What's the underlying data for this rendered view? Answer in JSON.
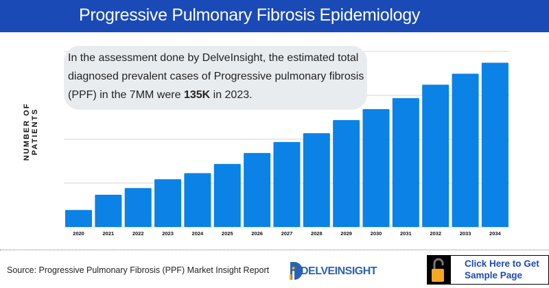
{
  "header": {
    "title": "Progressive Pulmonary Fibrosis Epidemiology"
  },
  "callout": {
    "line1": "In the assessment done by DelveInsight, the estimated total",
    "line2": "diagnosed prevalent cases of Progressive pulmonary fibrosis",
    "line3_pre": "(PPF) in the 7MM were ",
    "line3_bold": "135K",
    "line3_post": " in 2023."
  },
  "chart_data": {
    "type": "bar",
    "title": "",
    "xlabel": "",
    "ylabel": "NUMBER OF PATIENTS",
    "categories": [
      "2020",
      "2021",
      "2022",
      "2023",
      "2024",
      "2025",
      "2026",
      "2027",
      "2028",
      "2029",
      "2030",
      "2031",
      "2032",
      "2033",
      "2034"
    ],
    "values": [
      48,
      91,
      110,
      135,
      152,
      178,
      209,
      240,
      265,
      302,
      333,
      364,
      402,
      433,
      464
    ],
    "units": "K (estimated, anchored to 135K in 2023)",
    "ylim": [
      0,
      496
    ],
    "grid": true,
    "bar_color": "#0a82e6"
  },
  "footer": {
    "source": "Source: Progressive Pulmonary Fibrosis (PPF) Market Insight Report",
    "logo": "DELVEINSIGHT",
    "cta_line1": "Click Here to Get",
    "cta_line2": "Sample Page"
  },
  "colors": {
    "header": "#1a4ab5",
    "bar": "#0a82e6",
    "lock": "#f5a623"
  }
}
